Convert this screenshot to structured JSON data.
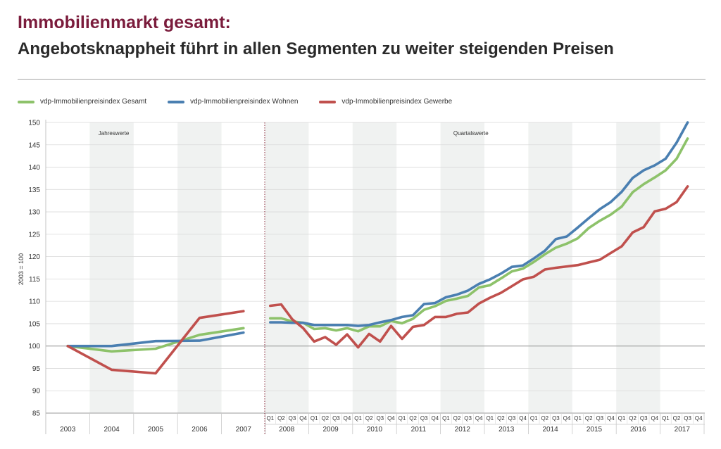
{
  "header": {
    "title": "Immobilienmarkt gesamt:",
    "subtitle": "Angebotsknappheit führt in allen Segmenten zu weiter steigenden Preisen"
  },
  "legend": [
    {
      "label": "vdp-Immobilienpreisindex Gesamt",
      "color": "#8dc26a"
    },
    {
      "label": "vdp-Immobilienpreisindex Wohnen",
      "color": "#4a7fb1"
    },
    {
      "label": "vdp-Immobilienpreisindex Gewerbe",
      "color": "#c0504d"
    }
  ],
  "chart_data": {
    "type": "line",
    "ylabel": "2003 = 100",
    "ylim": [
      85,
      150
    ],
    "yticks": [
      85,
      90,
      95,
      100,
      105,
      110,
      115,
      120,
      125,
      130,
      135,
      140,
      145,
      150
    ],
    "baseline": 100,
    "annotations": {
      "annual": "Jahreswerte",
      "quarterly": "Quartalswerte"
    },
    "annual": {
      "years": [
        "2003",
        "2004",
        "2005",
        "2006",
        "2007"
      ],
      "series": [
        {
          "name": "vdp-Immobilienpreisindex Gesamt",
          "color": "#8dc26a",
          "values": [
            100.0,
            98.8,
            99.4,
            102.5,
            104.0
          ]
        },
        {
          "name": "vdp-Immobilienpreisindex Wohnen",
          "color": "#4a7fb1",
          "values": [
            100.0,
            100.0,
            101.1,
            101.2,
            103.0
          ]
        },
        {
          "name": "vdp-Immobilienpreisindex Gewerbe",
          "color": "#c0504d",
          "values": [
            100.0,
            94.7,
            93.9,
            106.3,
            107.8
          ]
        }
      ]
    },
    "quarterly": {
      "years": [
        "2008",
        "2009",
        "2010",
        "2011",
        "2012",
        "2013",
        "2014",
        "2015",
        "2016",
        "2017"
      ],
      "quarter_labels": [
        "Q1",
        "Q2",
        "Q3",
        "Q4"
      ],
      "series": [
        {
          "name": "vdp-Immobilienpreisindex Gesamt",
          "color": "#8dc26a",
          "values": [
            106.2,
            106.2,
            105.5,
            105.2,
            103.8,
            104.0,
            103.5,
            104.0,
            103.3,
            104.4,
            104.4,
            105.6,
            105.1,
            106.1,
            108.1,
            108.9,
            110.1,
            110.6,
            111.2,
            113.1,
            113.6,
            115.1,
            116.7,
            117.3,
            118.8,
            120.5,
            122.0,
            122.9,
            124.1,
            126.4,
            128.0,
            129.4,
            131.2,
            134.4,
            136.2,
            137.7,
            139.3,
            141.9,
            146.4
          ]
        },
        {
          "name": "vdp-Immobilienpreisindex Wohnen",
          "color": "#4a7fb1",
          "values": [
            105.3,
            105.3,
            105.2,
            105.2,
            104.7,
            104.7,
            104.7,
            104.7,
            104.5,
            104.7,
            105.3,
            105.8,
            106.5,
            106.9,
            109.4,
            109.6,
            110.9,
            111.5,
            112.4,
            113.9,
            114.9,
            116.2,
            117.7,
            118.0,
            119.6,
            121.3,
            123.9,
            124.5,
            126.5,
            128.6,
            130.6,
            132.2,
            134.5,
            137.6,
            139.3,
            140.4,
            141.9,
            145.5,
            150.0
          ]
        },
        {
          "name": "vdp-Immobilienpreisindex Gewerbe",
          "color": "#c0504d",
          "values": [
            109.0,
            109.3,
            106.0,
            104.0,
            101.0,
            102.0,
            100.3,
            102.6,
            99.7,
            102.7,
            101.0,
            104.5,
            101.6,
            104.3,
            104.7,
            106.5,
            106.5,
            107.2,
            107.5,
            109.5,
            110.8,
            111.9,
            113.4,
            114.9,
            115.5,
            117.1,
            117.5,
            117.8,
            118.1,
            118.7,
            119.3,
            120.8,
            122.3,
            125.4,
            126.6,
            130.1,
            130.7,
            132.2,
            135.7
          ]
        }
      ]
    }
  }
}
